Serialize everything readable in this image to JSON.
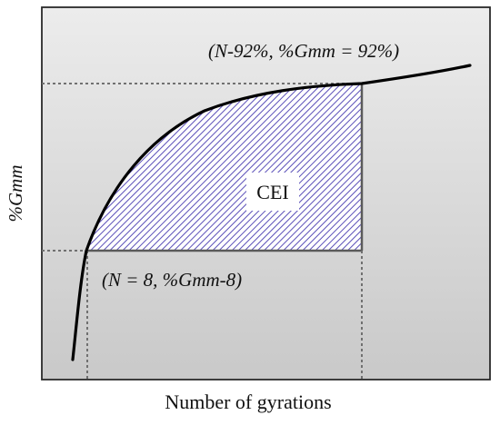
{
  "diagram": {
    "x_axis_label": "Number of gyrations",
    "y_axis_label": "%Gmm",
    "upper_point_label": "(N-92%, %Gmm = 92%)",
    "lower_point_label": "(N = 8, %Gmm-8)",
    "shaded_region_label": "CEI",
    "colors": {
      "curve": "#000000",
      "hatch": "#5a4fb8",
      "dotted": "#707070",
      "box": "#5a5a5a"
    }
  }
}
